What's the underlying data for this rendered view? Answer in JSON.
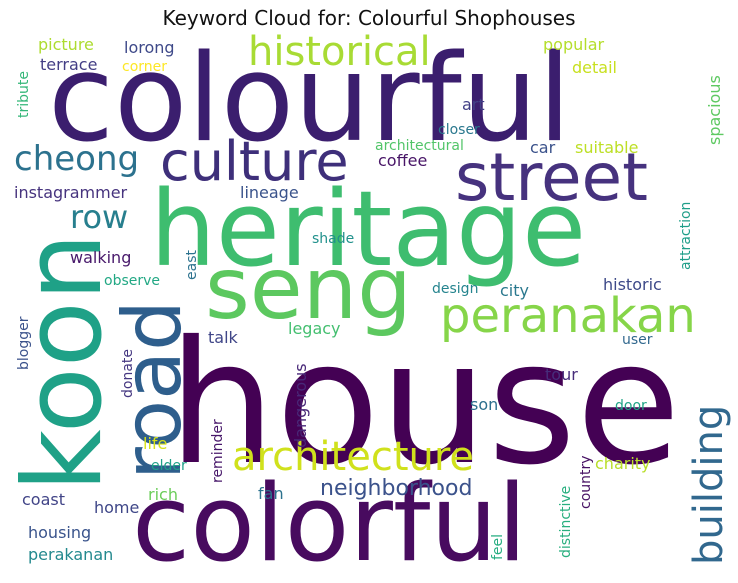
{
  "chart_data": {
    "type": "wordcloud",
    "title": "Keyword Cloud for: Colourful Shophouses",
    "grid": false,
    "palette": "viridis",
    "words": [
      {
        "text": "house",
        "size": 170,
        "color": "#440154"
      },
      {
        "text": "colourful",
        "size": 120,
        "color": "#3b1e6e"
      },
      {
        "text": "heritage",
        "size": 104,
        "color": "#3ebd6f"
      },
      {
        "text": "colorful",
        "size": 106,
        "color": "#480b5f"
      },
      {
        "text": "koon",
        "size": 108,
        "color": "#1fa187"
      },
      {
        "text": "seng",
        "size": 86,
        "color": "#5cc85f"
      },
      {
        "text": "road",
        "size": 80,
        "color": "#2e5e8c"
      },
      {
        "text": "street",
        "size": 66,
        "color": "#46327e"
      },
      {
        "text": "culture",
        "size": 54,
        "color": "#3e2f7a"
      },
      {
        "text": "peranakan",
        "size": 48,
        "color": "#86d549"
      },
      {
        "text": "historical",
        "size": 40,
        "color": "#a8db34"
      },
      {
        "text": "architecture",
        "size": 40,
        "color": "#d0e11c"
      },
      {
        "text": "building",
        "size": 40,
        "color": "#31688e"
      },
      {
        "text": "cheong",
        "size": 34,
        "color": "#2c728e"
      },
      {
        "text": "row",
        "size": 32,
        "color": "#277f8e"
      },
      {
        "text": "neighborhood",
        "size": 22,
        "color": "#3b528b"
      },
      {
        "text": "walking",
        "size": 16,
        "color": "#48196b"
      },
      {
        "text": "instagrammer",
        "size": 16,
        "color": "#46337e"
      },
      {
        "text": "lineage",
        "size": 16,
        "color": "#3a538b"
      },
      {
        "text": "coffee",
        "size": 16,
        "color": "#481567"
      },
      {
        "text": "car",
        "size": 16,
        "color": "#3b528b"
      },
      {
        "text": "suitable",
        "size": 16,
        "color": "#bddf26"
      },
      {
        "text": "architectural",
        "size": 14,
        "color": "#52c569"
      },
      {
        "text": "closer",
        "size": 14,
        "color": "#2a788e"
      },
      {
        "text": "art",
        "size": 16,
        "color": "#424086"
      },
      {
        "text": "picture",
        "size": 16,
        "color": "#addc30"
      },
      {
        "text": "lorong",
        "size": 16,
        "color": "#3e4989"
      },
      {
        "text": "popular",
        "size": 16,
        "color": "#b5de2b"
      },
      {
        "text": "terrace",
        "size": 16,
        "color": "#433e85"
      },
      {
        "text": "corner",
        "size": 14,
        "color": "#fde725"
      },
      {
        "text": "detail",
        "size": 16,
        "color": "#c8e020"
      },
      {
        "text": "spacious",
        "size": 16,
        "color": "#5ec962"
      },
      {
        "text": "tribute",
        "size": 14,
        "color": "#35b779"
      },
      {
        "text": "shade",
        "size": 14,
        "color": "#21918c"
      },
      {
        "text": "attraction",
        "size": 14,
        "color": "#1f9e89"
      },
      {
        "text": "observe",
        "size": 14,
        "color": "#22a884"
      },
      {
        "text": "east",
        "size": 14,
        "color": "#2c728e"
      },
      {
        "text": "design",
        "size": 14,
        "color": "#25848e"
      },
      {
        "text": "city",
        "size": 16,
        "color": "#2a788e"
      },
      {
        "text": "historic",
        "size": 16,
        "color": "#3e4a89"
      },
      {
        "text": "blogger",
        "size": 14,
        "color": "#3b528b"
      },
      {
        "text": "talk",
        "size": 16,
        "color": "#404688"
      },
      {
        "text": "legacy",
        "size": 16,
        "color": "#44bf70"
      },
      {
        "text": "user",
        "size": 14,
        "color": "#31688e"
      },
      {
        "text": "donate",
        "size": 14,
        "color": "#453781"
      },
      {
        "text": "dangerous",
        "size": 16,
        "color": "#482878"
      },
      {
        "text": "tour",
        "size": 16,
        "color": "#472d7b"
      },
      {
        "text": "son",
        "size": 16,
        "color": "#2d708e"
      },
      {
        "text": "door",
        "size": 14,
        "color": "#20a486"
      },
      {
        "text": "life",
        "size": 16,
        "color": "#d8e219"
      },
      {
        "text": "reminder",
        "size": 14,
        "color": "#48186a"
      },
      {
        "text": "elder",
        "size": 14,
        "color": "#1fa088"
      },
      {
        "text": "country",
        "size": 14,
        "color": "#471164"
      },
      {
        "text": "charity",
        "size": 16,
        "color": "#b8de29"
      },
      {
        "text": "distinctive",
        "size": 14,
        "color": "#29af7f"
      },
      {
        "text": "coast",
        "size": 16,
        "color": "#414487"
      },
      {
        "text": "fan",
        "size": 16,
        "color": "#2c728e"
      },
      {
        "text": "rich",
        "size": 16,
        "color": "#6ccd5a"
      },
      {
        "text": "home",
        "size": 16,
        "color": "#3f4788"
      },
      {
        "text": "feel",
        "size": 14,
        "color": "#26ad81"
      },
      {
        "text": "housing",
        "size": 16,
        "color": "#3a548c"
      },
      {
        "text": "perakanan",
        "size": 16,
        "color": "#23898e"
      }
    ]
  }
}
